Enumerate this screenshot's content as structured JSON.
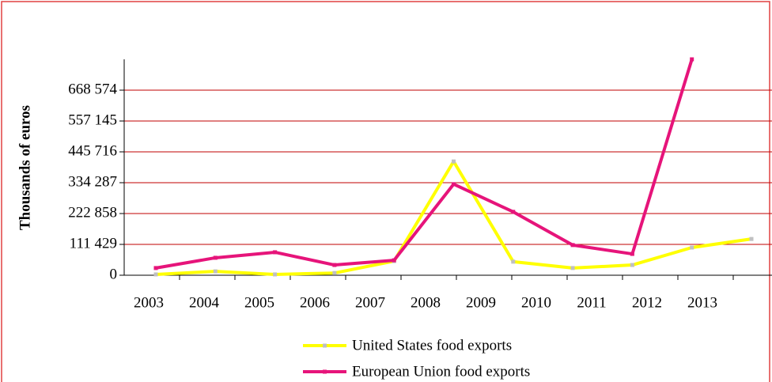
{
  "chart_data": {
    "type": "line",
    "y_label": "Thousands of euros",
    "categories": [
      "2003",
      "2004",
      "2005",
      "2006",
      "2007",
      "2008",
      "2009",
      "2010",
      "2011",
      "2012",
      "2013"
    ],
    "series": [
      {
        "name": "United States food exports",
        "color": "#ffff00",
        "marker_color": "#c0c0c0",
        "values": [
          3000,
          14000,
          3000,
          8000,
          51000,
          411000,
          49000,
          26000,
          37000,
          100000,
          131000
        ]
      },
      {
        "name": "European Union food exports",
        "color": "#e6147a",
        "marker_color": "#e6147a",
        "values": [
          26000,
          63000,
          83000,
          37000,
          54000,
          329000,
          229000,
          109000,
          77000,
          780000,
          null
        ]
      }
    ],
    "ylim": [
      0,
      780003
    ],
    "yticks": [
      0,
      {
        "value": 111429,
        "label": "111 429"
      },
      {
        "value": 222858,
        "label": "222 858"
      },
      {
        "value": 334287,
        "label": "334 287"
      },
      {
        "value": 445716,
        "label": "445 716"
      },
      {
        "value": 557145,
        "label": "557 145"
      },
      {
        "value": 668574,
        "label": "668 574"
      }
    ],
    "grid": true,
    "grid_color": "#c00000",
    "legend": "bottom"
  }
}
